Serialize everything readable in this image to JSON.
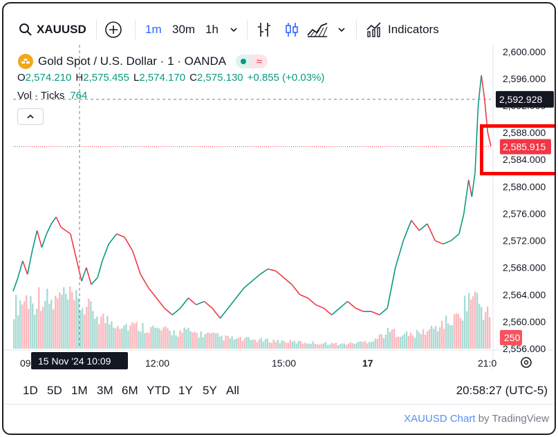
{
  "toolbar": {
    "symbol": "XAUUSD",
    "intervals": [
      "1m",
      "30m",
      "1h"
    ],
    "active_interval": "1m",
    "indicators_label": "Indicators"
  },
  "legend": {
    "title": "Gold Spot / U.S. Dollar · 1 · OANDA",
    "open_label": "O",
    "open": "2,574.210",
    "high_label": "H",
    "high": "2,575.455",
    "low_label": "L",
    "low": "2,574.170",
    "close_label": "C",
    "close": "2,575.130",
    "change": "+0.855 (+0.03%)",
    "vol_label": "Vol · Ticks",
    "vol_value": "764"
  },
  "crosshair": {
    "price_label": "2,592.928",
    "time_label": "15 Nov '24  10:09"
  },
  "last_price": "2,585.915",
  "volume_label": "250",
  "ranges": [
    "1D",
    "5D",
    "1M",
    "3M",
    "6M",
    "YTD",
    "1Y",
    "5Y",
    "All"
  ],
  "clock": "20:58:27 (UTC-5)",
  "credit": {
    "brand": "XAUUSD Chart",
    "by": "by TradingView"
  },
  "colors": {
    "up": "#089981",
    "down": "#f23645",
    "accent": "#2962ff",
    "annotation": "#ff0000"
  },
  "chart_data": {
    "type": "line",
    "title": "Gold Spot / U.S. Dollar · 1 · OANDA",
    "y_ticks": [
      "2,600.000",
      "2,596.000",
      "2,592.000",
      "2,588.000",
      "2,584.000",
      "2,580.000",
      "2,576.000",
      "2,572.000",
      "2,568.000",
      "2,564.000",
      "2,560.000",
      "2,556.000"
    ],
    "x_ticks": [
      "09",
      "12:00",
      "15:00",
      "17",
      "21:0"
    ],
    "ylim": [
      2556,
      2601
    ],
    "x": [
      0,
      3,
      6,
      9,
      12,
      15,
      18,
      21,
      24,
      27,
      30,
      33,
      36,
      40,
      43,
      46,
      49,
      53,
      56,
      60,
      65,
      70,
      75,
      80,
      85,
      90,
      95,
      100,
      105,
      110,
      115,
      120,
      125,
      130,
      135,
      140,
      145,
      150,
      155,
      160,
      165,
      170,
      175,
      180,
      185,
      190,
      195,
      200,
      205,
      210,
      215,
      220,
      225,
      230,
      235,
      240,
      245,
      250,
      255,
      260,
      265,
      270,
      275,
      280,
      283,
      286,
      288,
      290,
      292,
      294,
      296,
      298,
      300
    ],
    "values": [
      2564.5,
      2566.5,
      2569,
      2567,
      2570.5,
      2573.5,
      2571,
      2573,
      2574.5,
      2575.5,
      2574,
      2573.5,
      2573,
      2569,
      2566,
      2568,
      2565.5,
      2566.5,
      2569,
      2571.5,
      2573,
      2572.5,
      2570.5,
      2567,
      2565,
      2563.5,
      2562,
      2561,
      2562,
      2563.5,
      2562.5,
      2563,
      2562,
      2560.5,
      2562,
      2563.5,
      2565,
      2566,
      2567,
      2567.8,
      2567.5,
      2566.5,
      2565.5,
      2564,
      2563.5,
      2562.5,
      2562,
      2561,
      2562,
      2563,
      2562,
      2561.5,
      2561.5,
      2561,
      2562,
      2568,
      2572,
      2575,
      2573.5,
      2574.5,
      2572,
      2571.5,
      2572,
      2573,
      2576,
      2581,
      2578.5,
      2582,
      2592,
      2596.5,
      2593,
      2588,
      2586
    ],
    "volume_values": [
      62,
      70,
      75,
      68,
      80,
      72,
      65,
      78,
      74,
      70,
      66,
      60,
      55,
      48,
      42,
      40,
      38,
      35,
      34,
      33,
      32,
      30,
      28,
      26,
      25,
      24,
      26,
      24,
      22,
      21,
      20,
      18,
      16,
      15,
      14,
      14,
      13,
      13,
      12,
      12,
      11,
      11,
      10,
      10,
      9,
      9,
      8,
      8,
      8,
      7,
      7,
      8,
      9,
      10,
      12,
      16,
      22,
      26,
      24,
      22,
      20,
      22,
      25,
      28,
      32,
      38,
      40,
      45,
      60,
      80,
      75,
      58,
      50
    ]
  }
}
